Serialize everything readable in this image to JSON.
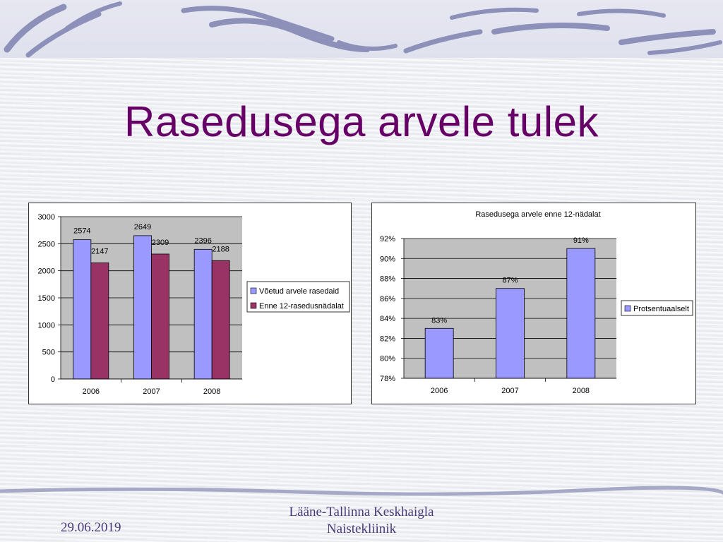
{
  "slide": {
    "title": "Rasedusega arvele tulek",
    "footer_date": "29.06.2019",
    "footer_line1": "Lääne-Tallinna Keskhaigla",
    "footer_line2": "Naistekliinik"
  },
  "colors": {
    "title": "#660066",
    "series1": "#9999ff",
    "series2": "#993366",
    "plot_bg": "#c0c0c0",
    "footer": "#4a3a7a"
  },
  "chart_data": [
    {
      "type": "bar",
      "categories": [
        "2006",
        "2007",
        "2008"
      ],
      "series": [
        {
          "name": "Võetud arvele rasedaid",
          "values": [
            2574,
            2649,
            2396
          ]
        },
        {
          "name": "Enne 12-rasedusnädalat",
          "values": [
            2147,
            2309,
            2188
          ]
        }
      ],
      "title": "",
      "ylim": [
        0,
        3000
      ],
      "yticks": [
        0,
        500,
        1000,
        1500,
        2000,
        2500,
        3000
      ],
      "grid": true,
      "legend": "right"
    },
    {
      "type": "bar",
      "title": "Rasedusega arvele enne 12-nädalat",
      "categories": [
        "2006",
        "2007",
        "2008"
      ],
      "series": [
        {
          "name": "Protsentuaalselt",
          "values": [
            83,
            87,
            91
          ],
          "labels": [
            "83%",
            "87%",
            "91%"
          ]
        }
      ],
      "ylim": [
        78,
        92
      ],
      "yticks": [
        "78%",
        "80%",
        "82%",
        "84%",
        "86%",
        "88%",
        "90%",
        "92%"
      ],
      "grid": true,
      "legend": "right"
    }
  ]
}
